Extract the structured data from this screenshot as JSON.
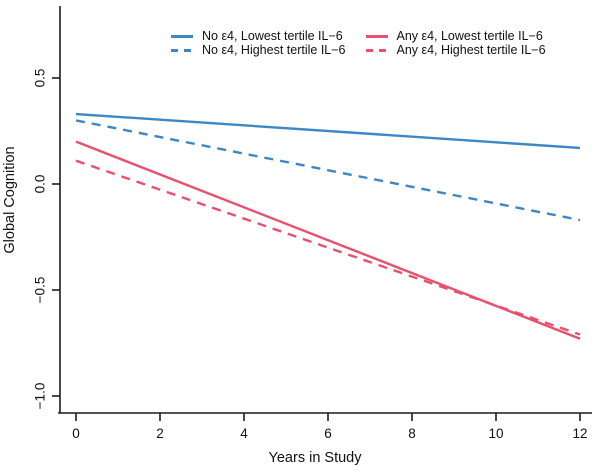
{
  "chart_data": {
    "type": "line",
    "title": "",
    "xlabel": "Years in Study",
    "ylabel": "Global Cognition",
    "xlim": [
      0,
      12
    ],
    "ylim": [
      -1.08,
      0.84
    ],
    "xticks": [
      0,
      2,
      4,
      6,
      8,
      10,
      12
    ],
    "xtick_labels": [
      "0",
      "2",
      "4",
      "6",
      "8",
      "10",
      "12"
    ],
    "yticks": [
      0.5,
      0.0,
      -0.5,
      -1.0
    ],
    "ytick_labels": [
      "0.5",
      "0.0",
      "−0.5",
      "−1.0"
    ],
    "grid": false,
    "legend_position": "top-center",
    "axis_color": "#1a1a1a",
    "text_color": "#111111",
    "series": [
      {
        "name": "No ε4, Lowest tertile IL−6",
        "color": "#3d87c5",
        "style": "solid",
        "x": [
          0,
          12
        ],
        "y": [
          0.33,
          0.17
        ]
      },
      {
        "name": "No ε4, Highest tertile IL−6",
        "color": "#3d87c5",
        "style": "dashed",
        "x": [
          0,
          12
        ],
        "y": [
          0.3,
          -0.17
        ]
      },
      {
        "name": "Any ε4, Lowest tertile IL−6",
        "color": "#e8506d",
        "style": "solid",
        "x": [
          0,
          12
        ],
        "y": [
          0.2,
          -0.73
        ]
      },
      {
        "name": "Any ε4, Highest tertile IL−6",
        "color": "#e8506d",
        "style": "dashed",
        "x": [
          0,
          12
        ],
        "y": [
          0.11,
          -0.71
        ]
      }
    ]
  }
}
